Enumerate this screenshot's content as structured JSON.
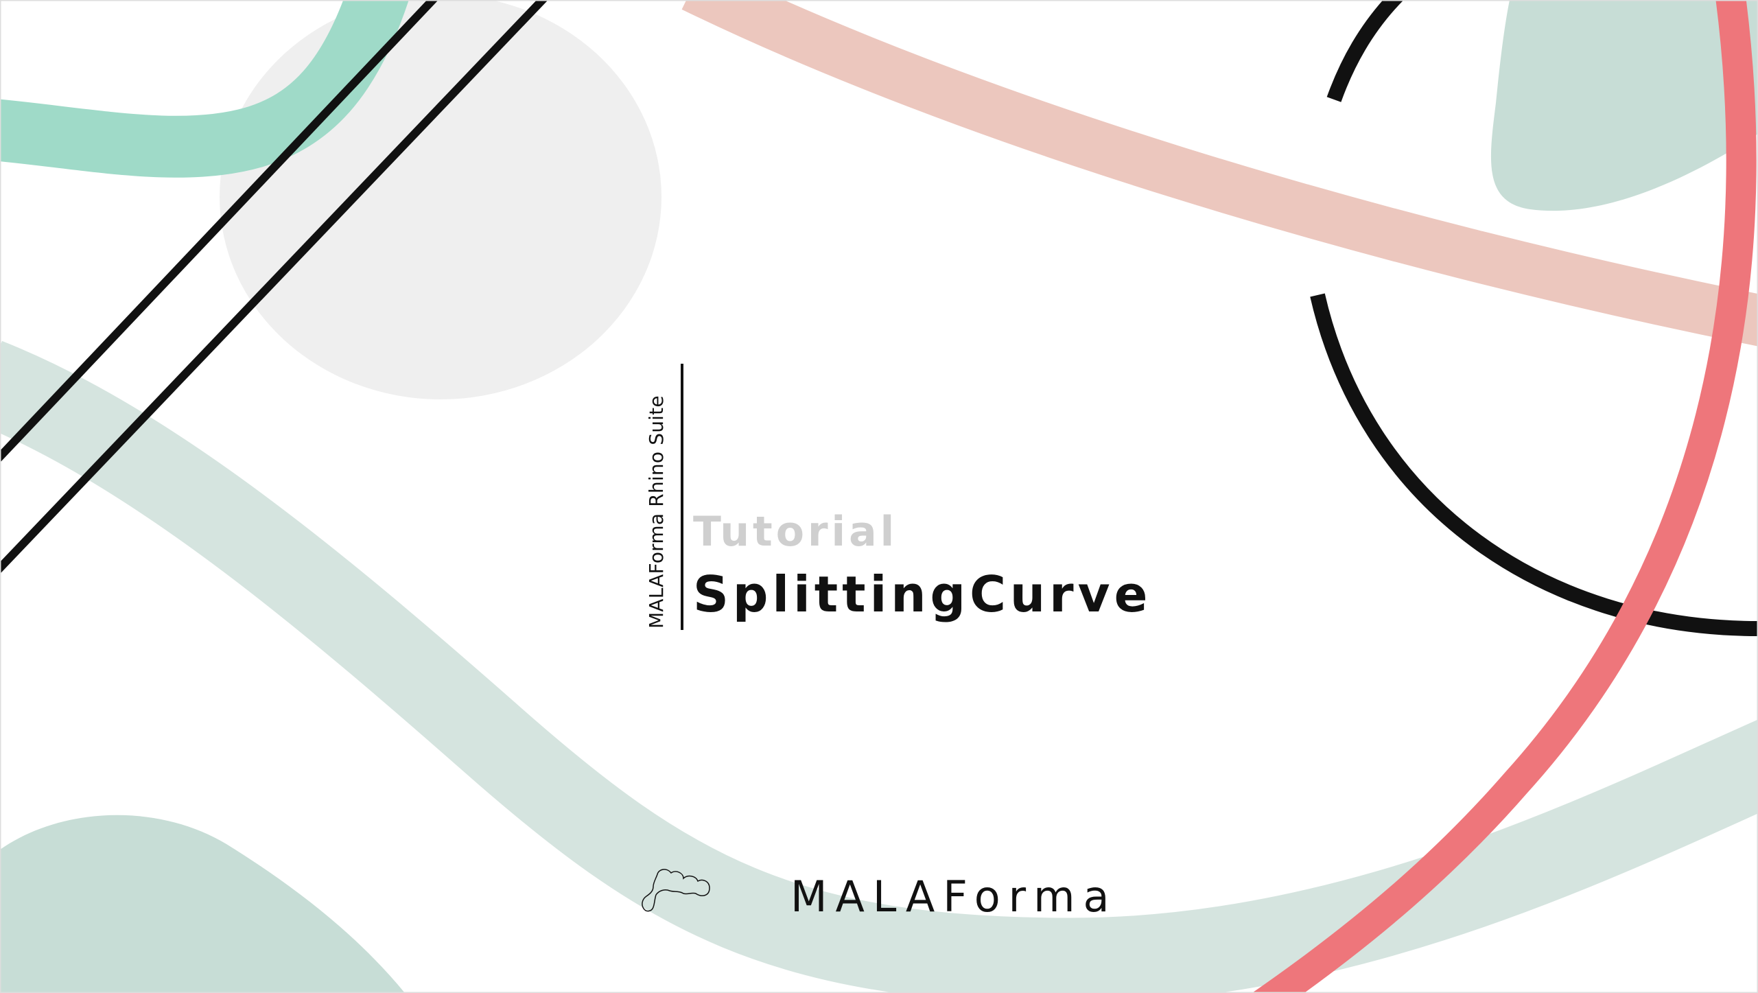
{
  "side_label": "MALAForma Rhino Suite",
  "subtitle": "Tutorial",
  "title": "SplittingCurve",
  "brand": {
    "name": "MALAForma",
    "logo_icon": "wavy-blob-outline-icon"
  },
  "colors": {
    "mint": "#9FDAC8",
    "sage": "#C7DDD6",
    "sage_light": "#D5E4DF",
    "peach": "#ECC7BE",
    "coral": "#EE767B",
    "gray_circle": "#EFEFEF",
    "black": "#111111"
  }
}
